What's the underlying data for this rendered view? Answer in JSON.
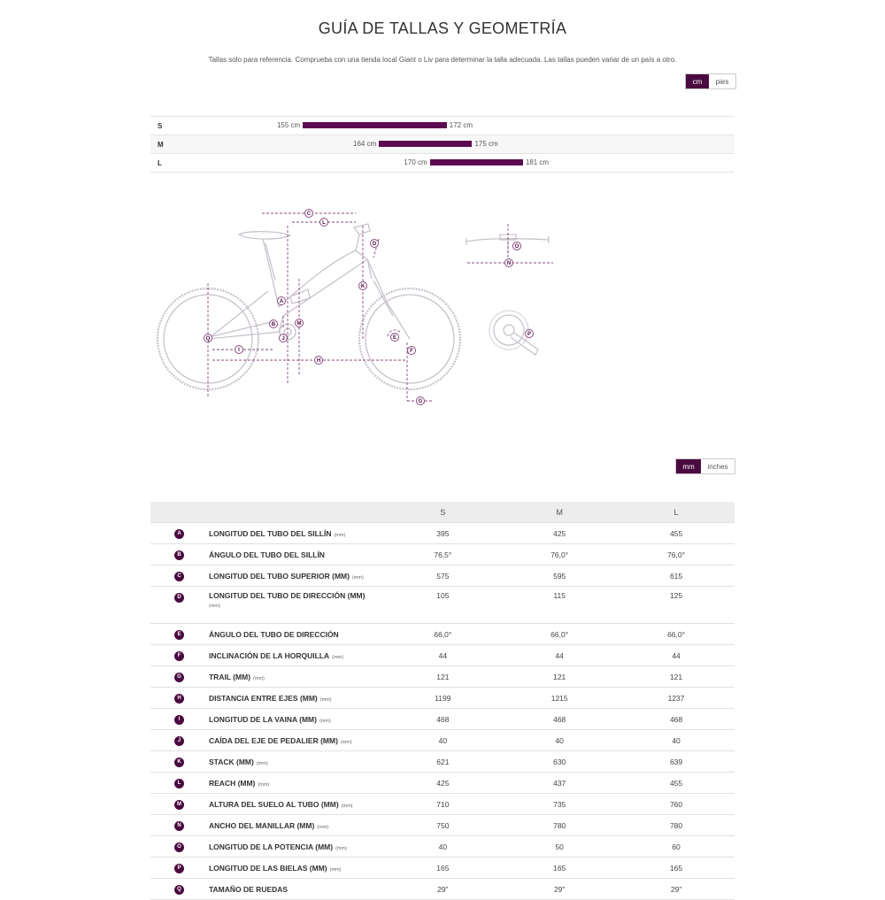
{
  "title": "GUÍA DE TALLAS Y GEOMETRÍA",
  "subtitle": "Tallas solo para referencia. Comprueba con una tienda local Giant o Liv para determinar la talla adecuada. Las tallas pueden variar de un país a otro.",
  "height_units": {
    "options": [
      "cm",
      "pies"
    ],
    "selected": "cm"
  },
  "rider_sizes": [
    {
      "size": "S",
      "min": 155,
      "max": 172,
      "min_label": "155 cm",
      "max_label": "172 cm"
    },
    {
      "size": "M",
      "min": 164,
      "max": 175,
      "min_label": "164 cm",
      "max_label": "175 cm"
    },
    {
      "size": "L",
      "min": 170,
      "max": 181,
      "min_label": "170 cm",
      "max_label": "181 cm"
    }
  ],
  "rider_range_cm": [
    137,
    206
  ],
  "diagram_letters": [
    "A",
    "B",
    "C",
    "D",
    "E",
    "F",
    "G",
    "H",
    "I",
    "J",
    "K",
    "L",
    "M",
    "N",
    "O",
    "P",
    "Q"
  ],
  "geometry_units": {
    "options": [
      "mm",
      "inches"
    ],
    "selected": "mm"
  },
  "geometry": {
    "columns": [
      "S",
      "M",
      "L"
    ],
    "rows": [
      {
        "letter": "A",
        "label": "LONGITUD DEL TUBO DEL SILLÍN",
        "unit": "(mm)",
        "values": [
          "395",
          "425",
          "455"
        ]
      },
      {
        "letter": "B",
        "label": "ÁNGULO DEL TUBO DEL SILLÍN",
        "unit": "",
        "values": [
          "76,5°",
          "76,0°",
          "76,0°"
        ]
      },
      {
        "letter": "C",
        "label": "LONGITUD DEL TUBO SUPERIOR (MM)",
        "unit": "(mm)",
        "values": [
          "575",
          "595",
          "615"
        ]
      },
      {
        "letter": "D",
        "label": "LONGITUD DEL TUBO DE DIRECCIÓN (MM)",
        "unit": "(mm)",
        "values": [
          "105",
          "115",
          "125"
        ],
        "tall": true
      },
      {
        "letter": "E",
        "label": "ÁNGULO DEL TUBO DE DIRECCIÓN",
        "unit": "",
        "values": [
          "66,0°",
          "66,0°",
          "66,0°"
        ]
      },
      {
        "letter": "F",
        "label": "INCLINACIÓN DE LA HORQUILLA",
        "unit": "(mm)",
        "values": [
          "44",
          "44",
          "44"
        ]
      },
      {
        "letter": "G",
        "label": "TRAIL (MM)",
        "unit": "(mm)",
        "values": [
          "121",
          "121",
          "121"
        ]
      },
      {
        "letter": "H",
        "label": "DISTANCIA ENTRE EJES (MM)",
        "unit": "(mm)",
        "values": [
          "1199",
          "1215",
          "1237"
        ]
      },
      {
        "letter": "I",
        "label": "LONGITUD DE LA VAINA (MM)",
        "unit": "(mm)",
        "values": [
          "468",
          "468",
          "468"
        ]
      },
      {
        "letter": "J",
        "label": "CAÍDA DEL EJE DE PEDALIER (MM)",
        "unit": "(mm)",
        "values": [
          "40",
          "40",
          "40"
        ]
      },
      {
        "letter": "K",
        "label": "STACK (MM)",
        "unit": "(mm)",
        "values": [
          "621",
          "630",
          "639"
        ]
      },
      {
        "letter": "L",
        "label": "REACH (MM)",
        "unit": "(mm)",
        "values": [
          "425",
          "437",
          "455"
        ]
      },
      {
        "letter": "M",
        "label": "ALTURA DEL SUELO AL TUBO (MM)",
        "unit": "(mm)",
        "values": [
          "710",
          "735",
          "760"
        ]
      },
      {
        "letter": "N",
        "label": "ANCHO DEL MANILLAR (MM)",
        "unit": "(mm)",
        "values": [
          "750",
          "780",
          "780"
        ]
      },
      {
        "letter": "O",
        "label": "LONGITUD DE LA POTENCIA (MM)",
        "unit": "(mm)",
        "values": [
          "40",
          "50",
          "60"
        ]
      },
      {
        "letter": "P",
        "label": "LONGITUD DE LAS BIELAS (MM)",
        "unit": "(mm)",
        "values": [
          "165",
          "165",
          "165"
        ]
      },
      {
        "letter": "Q",
        "label": "TAMAÑO DE RUEDAS",
        "unit": "",
        "values": [
          "29\"",
          "29\"",
          "29\""
        ]
      }
    ]
  },
  "colors": {
    "accent": "#4a0a40",
    "bar": "#5b0a52",
    "frame_line": "#c9c2cc",
    "dimension_line": "#8a4a82"
  }
}
